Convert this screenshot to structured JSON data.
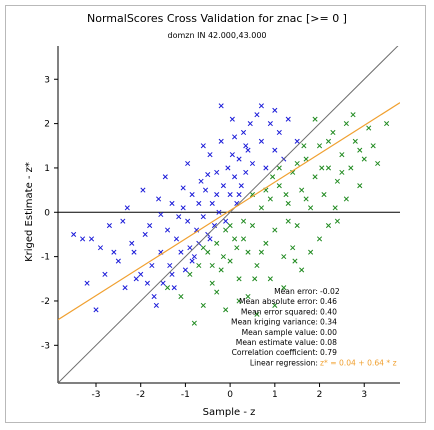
{
  "chart_data": {
    "type": "scatter",
    "title": "NormalScores Cross Validation for znac [>= 0 ]",
    "subtitle": "domzn IN 42.000,43.000",
    "xlabel": "Sample - z",
    "ylabel": "Kriged Estimate - z*",
    "xlim": [
      -3.85,
      3.8
    ],
    "ylim": [
      -3.85,
      3.75
    ],
    "xticks": [
      -3,
      -2,
      -1,
      0,
      1,
      2,
      3
    ],
    "yticks": [
      -3,
      -2,
      -1,
      0,
      1,
      2,
      3
    ],
    "grid": false,
    "series": [
      {
        "color": "#1b1bd9",
        "points": [
          [
            -3.5,
            -0.5
          ],
          [
            -3.3,
            -0.6
          ],
          [
            -3.1,
            -0.6
          ],
          [
            -2.9,
            -0.8
          ],
          [
            -2.7,
            -0.3
          ],
          [
            -2.6,
            -0.9
          ],
          [
            -2.5,
            -1.1
          ],
          [
            -2.4,
            -0.2
          ],
          [
            -2.2,
            -0.7
          ],
          [
            -2.1,
            -1.5
          ],
          [
            -2.0,
            -1.4
          ],
          [
            -1.9,
            -0.5
          ],
          [
            -1.85,
            -1.6
          ],
          [
            -1.8,
            -0.3
          ],
          [
            -1.75,
            -1.2
          ],
          [
            -1.7,
            -1.9
          ],
          [
            -1.6,
            0.3
          ],
          [
            -1.55,
            -0.9
          ],
          [
            -1.5,
            -1.6
          ],
          [
            -1.4,
            -0.4
          ],
          [
            -1.35,
            -1.2
          ],
          [
            -1.3,
            0.2
          ],
          [
            -1.25,
            -1.7
          ],
          [
            -1.2,
            -0.6
          ],
          [
            -1.1,
            -0.9
          ],
          [
            -1.05,
            0.1
          ],
          [
            -1.0,
            -1.3
          ],
          [
            -0.95,
            -0.2
          ],
          [
            -0.9,
            -0.8
          ],
          [
            -0.85,
            0.4
          ],
          [
            -0.8,
            -1.0
          ],
          [
            -0.75,
            -0.4
          ],
          [
            -0.7,
            -0.7
          ],
          [
            -0.65,
            0.7
          ],
          [
            -0.6,
            -0.1
          ],
          [
            -0.55,
            0.5
          ],
          [
            -0.5,
            -0.5
          ],
          [
            -0.45,
            1.3
          ],
          [
            -0.4,
            0.2
          ],
          [
            -0.35,
            -0.3
          ],
          [
            -0.3,
            0.9
          ],
          [
            -0.25,
            0.0
          ],
          [
            -0.2,
            1.6
          ],
          [
            -0.15,
            0.6
          ],
          [
            -0.1,
            -0.2
          ],
          [
            -0.05,
            1.0
          ],
          [
            0.0,
            0.4
          ],
          [
            0.05,
            2.1
          ],
          [
            0.1,
            0.8
          ],
          [
            0.15,
            0.2
          ],
          [
            0.2,
            1.2
          ],
          [
            0.25,
            0.6
          ],
          [
            0.3,
            1.8
          ],
          [
            0.35,
            0.9
          ],
          [
            0.4,
            1.4
          ],
          [
            0.5,
            1.1
          ],
          [
            0.6,
            2.2
          ],
          [
            0.7,
            1.6
          ],
          [
            0.8,
            1.0
          ],
          [
            0.9,
            2.0
          ],
          [
            1.0,
            1.4
          ],
          [
            1.1,
            1.8
          ],
          [
            1.2,
            1.2
          ],
          [
            1.3,
            2.1
          ],
          [
            1.5,
            1.6
          ],
          [
            -2.8,
            -1.4
          ],
          [
            -2.3,
            0.1
          ],
          [
            -1.95,
            0.5
          ],
          [
            -1.45,
            0.8
          ],
          [
            -0.95,
            1.1
          ],
          [
            -0.6,
            1.5
          ],
          [
            -0.2,
            2.4
          ],
          [
            -0.7,
            0.2
          ],
          [
            -0.3,
            0.4
          ],
          [
            0.1,
            1.7
          ],
          [
            0.45,
            2.0
          ],
          [
            -1.15,
            -0.1
          ],
          [
            -0.45,
            -0.6
          ],
          [
            0.2,
            0.4
          ],
          [
            -2.35,
            -1.7
          ],
          [
            -1.65,
            -2.1
          ],
          [
            -3.0,
            -2.2
          ],
          [
            -3.2,
            -1.6
          ],
          [
            -1.3,
            -1.4
          ],
          [
            -0.85,
            -1.1
          ],
          [
            0.7,
            2.4
          ],
          [
            1.0,
            2.3
          ],
          [
            -2.15,
            -0.9
          ],
          [
            -1.55,
            -0.05
          ],
          [
            -1.05,
            0.55
          ],
          [
            -0.5,
            0.85
          ],
          [
            0.05,
            1.3
          ],
          [
            0.35,
            1.5
          ]
        ]
      },
      {
        "color": "#1f8a1f",
        "points": [
          [
            -1.4,
            -1.7
          ],
          [
            -1.1,
            -1.9
          ],
          [
            -0.9,
            -1.4
          ],
          [
            -0.7,
            -1.2
          ],
          [
            -0.6,
            -2.1
          ],
          [
            -0.5,
            -0.9
          ],
          [
            -0.4,
            -1.6
          ],
          [
            -0.3,
            -0.7
          ],
          [
            -0.2,
            -1.3
          ],
          [
            -0.1,
            -0.4
          ],
          [
            0.0,
            -1.1
          ],
          [
            0.1,
            -0.6
          ],
          [
            0.2,
            -1.5
          ],
          [
            0.3,
            -0.2
          ],
          [
            0.4,
            -0.9
          ],
          [
            0.5,
            -0.3
          ],
          [
            0.6,
            -1.2
          ],
          [
            0.7,
            0.1
          ],
          [
            0.8,
            -0.7
          ],
          [
            0.9,
            0.3
          ],
          [
            1.0,
            -0.4
          ],
          [
            1.1,
            0.6
          ],
          [
            1.2,
            -1.0
          ],
          [
            1.3,
            0.2
          ],
          [
            1.4,
            0.9
          ],
          [
            1.5,
            -0.3
          ],
          [
            1.6,
            0.5
          ],
          [
            1.7,
            1.2
          ],
          [
            1.8,
            0.1
          ],
          [
            1.9,
            0.8
          ],
          [
            2.0,
            1.5
          ],
          [
            2.1,
            0.4
          ],
          [
            2.2,
            1.0
          ],
          [
            2.3,
            1.8
          ],
          [
            2.4,
            0.7
          ],
          [
            2.5,
            1.3
          ],
          [
            2.6,
            2.0
          ],
          [
            2.7,
            1.0
          ],
          [
            2.8,
            1.6
          ],
          [
            3.0,
            1.2
          ],
          [
            3.1,
            1.9
          ],
          [
            3.3,
            1.1
          ],
          [
            3.5,
            2.0
          ],
          [
            3.2,
            1.5
          ],
          [
            2.9,
            0.6
          ],
          [
            2.4,
            -0.2
          ],
          [
            2.0,
            -0.6
          ],
          [
            1.6,
            -1.3
          ],
          [
            1.2,
            -1.7
          ],
          [
            0.9,
            -1.5
          ],
          [
            0.6,
            -2.3
          ],
          [
            0.2,
            -2.0
          ],
          [
            -0.3,
            -1.8
          ],
          [
            -0.8,
            -2.5
          ],
          [
            -0.1,
            -2.2
          ],
          [
            0.4,
            -1.9
          ],
          [
            1.0,
            -2.1
          ],
          [
            1.4,
            -0.8
          ],
          [
            1.8,
            -0.9
          ],
          [
            2.2,
            -0.3
          ],
          [
            2.6,
            0.3
          ],
          [
            0.8,
            0.5
          ],
          [
            1.5,
            1.1
          ],
          [
            0.5,
            0.4
          ],
          [
            0.0,
            -0.3
          ],
          [
            -0.6,
            -0.8
          ],
          [
            1.9,
            2.1
          ],
          [
            2.2,
            1.6
          ],
          [
            1.1,
            1.0
          ],
          [
            0.3,
            -0.6
          ],
          [
            0.7,
            -0.9
          ],
          [
            1.3,
            -0.2
          ],
          [
            2.5,
            0.9
          ],
          [
            1.7,
            0.3
          ],
          [
            2.9,
            1.4
          ],
          [
            -0.4,
            -1.2
          ],
          [
            0.95,
            0.8
          ],
          [
            1.65,
            1.5
          ],
          [
            2.05,
            1.0
          ],
          [
            0.15,
            -0.8
          ],
          [
            -0.15,
            -1.0
          ],
          [
            1.25,
            0.4
          ],
          [
            2.75,
            2.2
          ],
          [
            1.45,
            -1.1
          ],
          [
            0.55,
            -1.5
          ],
          [
            2.35,
            0.1
          ]
        ]
      }
    ],
    "reference_line": {
      "type": "y=x",
      "color": "#6e6e6e"
    },
    "regression_line": {
      "intercept": 0.04,
      "slope": 0.64,
      "color": "#f0a030"
    },
    "stats": [
      {
        "label": "Mean error:",
        "value": "-0.02"
      },
      {
        "label": "Mean absolute error:",
        "value": "0.46"
      },
      {
        "label": "Mean error squared:",
        "value": "0.40"
      },
      {
        "label": "Mean kriging variance:",
        "value": "0.34"
      },
      {
        "label": "Mean sample value:",
        "value": "0.00"
      },
      {
        "label": "Mean estimate value:",
        "value": "0.08"
      },
      {
        "label": "Correlation coefficient:",
        "value": "0.79"
      },
      {
        "label": "Linear regression:",
        "value": "z* = 0.04 + 0.64 * z",
        "accent": true
      }
    ],
    "colors": {
      "accent": "#f0a030",
      "axis": "#000000",
      "text": "#000000"
    }
  }
}
